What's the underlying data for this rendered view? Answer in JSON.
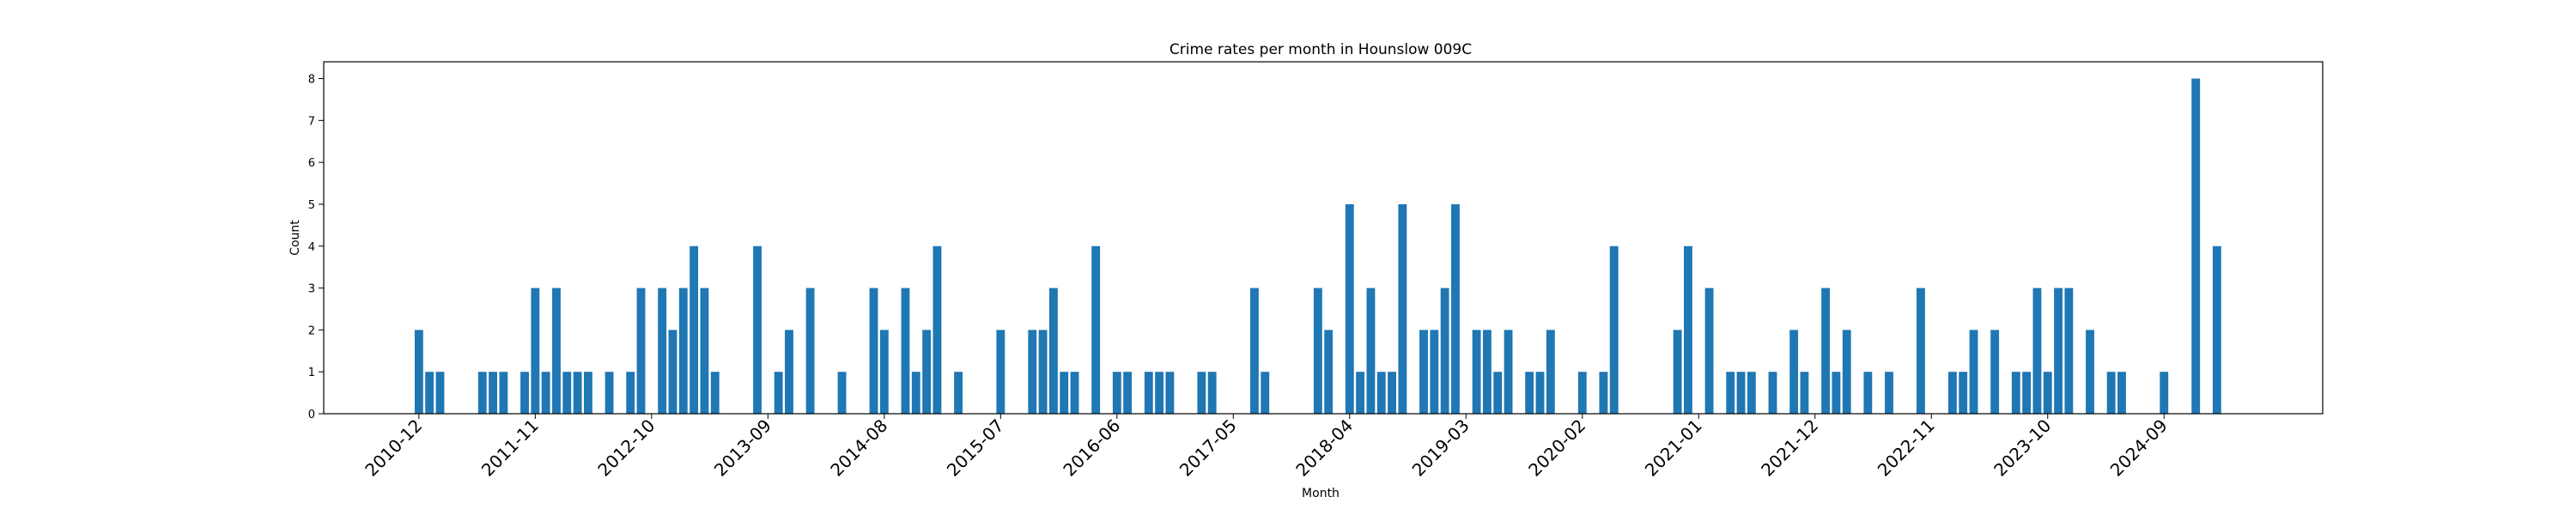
{
  "chart_data": {
    "type": "bar",
    "title": "Crime rates per month in Hounslow 009C",
    "xlabel": "Month",
    "ylabel": "Count",
    "ylim": [
      0,
      8.4
    ],
    "yticks": [
      0,
      1,
      2,
      3,
      4,
      5,
      6,
      7,
      8
    ],
    "xlim": [
      -9,
      180
    ],
    "xticks": [
      {
        "label": "2010-12",
        "index": 0
      },
      {
        "label": "2011-11",
        "index": 11
      },
      {
        "label": "2012-10",
        "index": 22
      },
      {
        "label": "2013-09",
        "index": 33
      },
      {
        "label": "2014-08",
        "index": 44
      },
      {
        "label": "2015-07",
        "index": 55
      },
      {
        "label": "2016-06",
        "index": 66
      },
      {
        "label": "2017-05",
        "index": 77
      },
      {
        "label": "2018-04",
        "index": 88
      },
      {
        "label": "2019-03",
        "index": 99
      },
      {
        "label": "2020-02",
        "index": 110
      },
      {
        "label": "2021-01",
        "index": 121
      },
      {
        "label": "2021-12",
        "index": 132
      },
      {
        "label": "2022-11",
        "index": 143
      },
      {
        "label": "2023-10",
        "index": 154
      },
      {
        "label": "2024-09",
        "index": 165
      }
    ],
    "bars": [
      {
        "i": 0,
        "v": 2
      },
      {
        "i": 1,
        "v": 1
      },
      {
        "i": 2,
        "v": 1
      },
      {
        "i": 6,
        "v": 1
      },
      {
        "i": 7,
        "v": 1
      },
      {
        "i": 8,
        "v": 1
      },
      {
        "i": 10,
        "v": 1
      },
      {
        "i": 11,
        "v": 3
      },
      {
        "i": 12,
        "v": 1
      },
      {
        "i": 13,
        "v": 3
      },
      {
        "i": 14,
        "v": 1
      },
      {
        "i": 15,
        "v": 1
      },
      {
        "i": 16,
        "v": 1
      },
      {
        "i": 18,
        "v": 1
      },
      {
        "i": 20,
        "v": 1
      },
      {
        "i": 21,
        "v": 3
      },
      {
        "i": 23,
        "v": 3
      },
      {
        "i": 24,
        "v": 2
      },
      {
        "i": 25,
        "v": 3
      },
      {
        "i": 26,
        "v": 4
      },
      {
        "i": 27,
        "v": 3
      },
      {
        "i": 28,
        "v": 1
      },
      {
        "i": 32,
        "v": 4
      },
      {
        "i": 34,
        "v": 1
      },
      {
        "i": 35,
        "v": 2
      },
      {
        "i": 37,
        "v": 3
      },
      {
        "i": 40,
        "v": 1
      },
      {
        "i": 43,
        "v": 3
      },
      {
        "i": 44,
        "v": 2
      },
      {
        "i": 46,
        "v": 3
      },
      {
        "i": 47,
        "v": 1
      },
      {
        "i": 48,
        "v": 2
      },
      {
        "i": 49,
        "v": 4
      },
      {
        "i": 51,
        "v": 1
      },
      {
        "i": 55,
        "v": 2
      },
      {
        "i": 58,
        "v": 2
      },
      {
        "i": 59,
        "v": 2
      },
      {
        "i": 60,
        "v": 3
      },
      {
        "i": 61,
        "v": 1
      },
      {
        "i": 62,
        "v": 1
      },
      {
        "i": 64,
        "v": 4
      },
      {
        "i": 66,
        "v": 1
      },
      {
        "i": 67,
        "v": 1
      },
      {
        "i": 69,
        "v": 1
      },
      {
        "i": 70,
        "v": 1
      },
      {
        "i": 71,
        "v": 1
      },
      {
        "i": 74,
        "v": 1
      },
      {
        "i": 75,
        "v": 1
      },
      {
        "i": 79,
        "v": 3
      },
      {
        "i": 80,
        "v": 1
      },
      {
        "i": 85,
        "v": 3
      },
      {
        "i": 86,
        "v": 2
      },
      {
        "i": 88,
        "v": 5
      },
      {
        "i": 89,
        "v": 1
      },
      {
        "i": 90,
        "v": 3
      },
      {
        "i": 91,
        "v": 1
      },
      {
        "i": 92,
        "v": 1
      },
      {
        "i": 93,
        "v": 5
      },
      {
        "i": 95,
        "v": 2
      },
      {
        "i": 96,
        "v": 2
      },
      {
        "i": 97,
        "v": 3
      },
      {
        "i": 98,
        "v": 5
      },
      {
        "i": 100,
        "v": 2
      },
      {
        "i": 101,
        "v": 2
      },
      {
        "i": 102,
        "v": 1
      },
      {
        "i": 103,
        "v": 2
      },
      {
        "i": 105,
        "v": 1
      },
      {
        "i": 106,
        "v": 1
      },
      {
        "i": 107,
        "v": 2
      },
      {
        "i": 110,
        "v": 1
      },
      {
        "i": 112,
        "v": 1
      },
      {
        "i": 113,
        "v": 4
      },
      {
        "i": 119,
        "v": 2
      },
      {
        "i": 120,
        "v": 4
      },
      {
        "i": 122,
        "v": 3
      },
      {
        "i": 124,
        "v": 1
      },
      {
        "i": 125,
        "v": 1
      },
      {
        "i": 126,
        "v": 1
      },
      {
        "i": 128,
        "v": 1
      },
      {
        "i": 130,
        "v": 2
      },
      {
        "i": 131,
        "v": 1
      },
      {
        "i": 133,
        "v": 3
      },
      {
        "i": 134,
        "v": 1
      },
      {
        "i": 135,
        "v": 2
      },
      {
        "i": 137,
        "v": 1
      },
      {
        "i": 139,
        "v": 1
      },
      {
        "i": 142,
        "v": 3
      },
      {
        "i": 145,
        "v": 1
      },
      {
        "i": 146,
        "v": 1
      },
      {
        "i": 147,
        "v": 2
      },
      {
        "i": 149,
        "v": 2
      },
      {
        "i": 151,
        "v": 1
      },
      {
        "i": 152,
        "v": 1
      },
      {
        "i": 153,
        "v": 3
      },
      {
        "i": 154,
        "v": 1
      },
      {
        "i": 155,
        "v": 3
      },
      {
        "i": 156,
        "v": 3
      },
      {
        "i": 158,
        "v": 2
      },
      {
        "i": 160,
        "v": 1
      },
      {
        "i": 161,
        "v": 1
      },
      {
        "i": 165,
        "v": 1
      },
      {
        "i": 168,
        "v": 8
      },
      {
        "i": 170,
        "v": 4
      }
    ]
  }
}
